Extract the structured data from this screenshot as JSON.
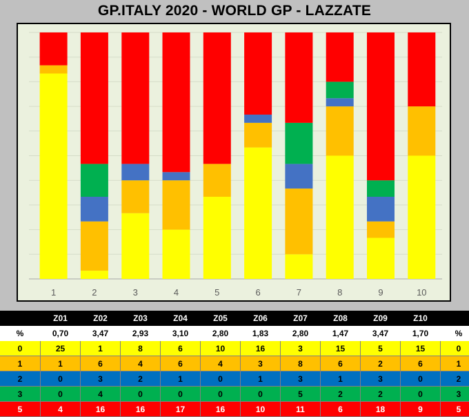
{
  "title": "GP.ITALY 2020 - WORLD GP - LAZZATE",
  "chart_data": {
    "type": "bar",
    "stacked": true,
    "normalized": true,
    "categories": [
      "1",
      "2",
      "3",
      "4",
      "5",
      "6",
      "7",
      "8",
      "9",
      "10"
    ],
    "series": [
      {
        "level": "0",
        "color": "#ffff00",
        "values": [
          25,
          1,
          8,
          6,
          10,
          16,
          3,
          15,
          5,
          15
        ]
      },
      {
        "level": "1",
        "color": "#ffc000",
        "values": [
          1,
          6,
          4,
          6,
          4,
          3,
          8,
          6,
          2,
          6
        ]
      },
      {
        "level": "2",
        "color": "#4472c4",
        "values": [
          0,
          3,
          2,
          1,
          0,
          1,
          3,
          1,
          3,
          0
        ]
      },
      {
        "level": "3",
        "color": "#00b050",
        "values": [
          0,
          4,
          0,
          0,
          0,
          0,
          5,
          2,
          2,
          0
        ]
      },
      {
        "level": "5",
        "color": "#ff0000",
        "values": [
          4,
          16,
          16,
          17,
          16,
          10,
          11,
          6,
          18,
          9
        ]
      }
    ],
    "ylim": [
      0,
      30
    ],
    "grid": true,
    "plot_background": "#ebf1de"
  },
  "table": {
    "headers": [
      "",
      "Z01",
      "Z02",
      "Z03",
      "Z04",
      "Z05",
      "Z06",
      "Z07",
      "Z08",
      "Z09",
      "Z10",
      ""
    ],
    "pct_label": "%",
    "pct_values": [
      "0,70",
      "3,47",
      "2,93",
      "3,10",
      "2,80",
      "1,83",
      "2,80",
      "1,47",
      "3,47",
      "1,70"
    ],
    "pct_right": "%",
    "rows": [
      {
        "label": "0",
        "bg": "#ffff00",
        "fg": "#000000",
        "values": [
          "25",
          "1",
          "8",
          "6",
          "10",
          "16",
          "3",
          "15",
          "5",
          "15"
        ]
      },
      {
        "label": "1",
        "bg": "#ffc000",
        "fg": "#000000",
        "values": [
          "1",
          "6",
          "4",
          "6",
          "4",
          "3",
          "8",
          "6",
          "2",
          "6"
        ]
      },
      {
        "label": "2",
        "bg": "#0070c0",
        "fg": "#000000",
        "values": [
          "0",
          "3",
          "2",
          "1",
          "0",
          "1",
          "3",
          "1",
          "3",
          "0"
        ]
      },
      {
        "label": "3",
        "bg": "#00b050",
        "fg": "#000000",
        "values": [
          "0",
          "4",
          "0",
          "0",
          "0",
          "0",
          "5",
          "2",
          "2",
          "0"
        ]
      },
      {
        "label": "5",
        "bg": "#ff0000",
        "fg": "#ffffff",
        "values": [
          "4",
          "16",
          "16",
          "17",
          "16",
          "10",
          "11",
          "6",
          "18",
          "9"
        ]
      }
    ]
  }
}
